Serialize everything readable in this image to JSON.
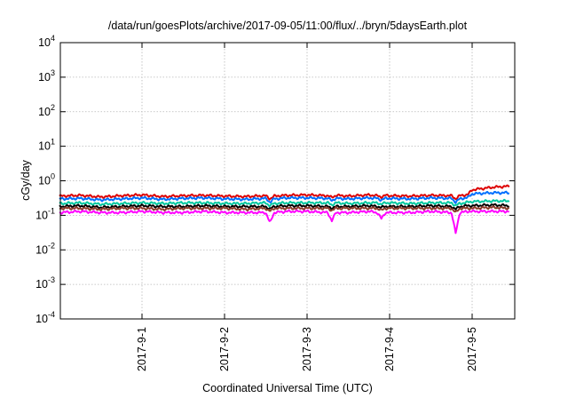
{
  "chart_data": {
    "type": "line",
    "title": "/data/run/goesPlots/archive/2017-09-05/11:00/flux/../bryn/5daysEarth.plot",
    "xlabel": "Coordinated Universal Time (UTC)",
    "ylabel": "cGy/day",
    "yscale": "log",
    "ylim": [
      0.0001,
      10000
    ],
    "xlim": [
      "2017-08-31 00:00",
      "2017-09-05 11:00"
    ],
    "x_ticks": [
      "2017-9-1",
      "2017-9-2",
      "2017-9-3",
      "2017-9-4",
      "2017-9-5"
    ],
    "y_ticks": [
      {
        "base": "10",
        "exp": "4"
      },
      {
        "base": "10",
        "exp": "3"
      },
      {
        "base": "10",
        "exp": "2"
      },
      {
        "base": "10",
        "exp": "1"
      },
      {
        "base": "10",
        "exp": "0"
      },
      {
        "base": "10",
        "exp": "-1"
      },
      {
        "base": "10",
        "exp": "-2"
      },
      {
        "base": "10",
        "exp": "-3"
      },
      {
        "base": "10",
        "exp": "-4"
      }
    ],
    "grid": true,
    "legend": "none",
    "x_day_fraction": [
      0,
      0.25,
      0.5,
      0.75,
      1,
      1.25,
      1.5,
      1.75,
      2,
      2.25,
      2.5,
      2.55,
      2.6,
      2.75,
      3,
      3.25,
      3.3,
      3.35,
      3.5,
      3.75,
      3.85,
      3.9,
      3.95,
      4,
      4.25,
      4.5,
      4.75,
      4.8,
      4.85,
      4.95,
      5.0,
      5.25,
      5.4583
    ],
    "series": [
      {
        "color": "#dd0000",
        "values": [
          0.36,
          0.38,
          0.34,
          0.37,
          0.39,
          0.35,
          0.37,
          0.38,
          0.36,
          0.35,
          0.37,
          0.3,
          0.36,
          0.38,
          0.39,
          0.37,
          0.33,
          0.38,
          0.36,
          0.39,
          0.37,
          0.34,
          0.38,
          0.37,
          0.36,
          0.38,
          0.37,
          0.3,
          0.37,
          0.4,
          0.55,
          0.65,
          0.7
        ]
      },
      {
        "color": "#0070ff",
        "values": [
          0.3,
          0.31,
          0.28,
          0.3,
          0.32,
          0.29,
          0.31,
          0.32,
          0.3,
          0.29,
          0.31,
          0.24,
          0.3,
          0.32,
          0.32,
          0.31,
          0.27,
          0.31,
          0.3,
          0.32,
          0.31,
          0.28,
          0.31,
          0.31,
          0.3,
          0.32,
          0.31,
          0.24,
          0.3,
          0.33,
          0.42,
          0.45,
          0.45
        ]
      },
      {
        "color": "#00c8a0",
        "values": [
          0.22,
          0.23,
          0.21,
          0.22,
          0.23,
          0.22,
          0.23,
          0.23,
          0.22,
          0.22,
          0.23,
          0.19,
          0.22,
          0.23,
          0.23,
          0.23,
          0.2,
          0.23,
          0.22,
          0.23,
          0.23,
          0.21,
          0.23,
          0.23,
          0.22,
          0.23,
          0.23,
          0.19,
          0.22,
          0.24,
          0.25,
          0.26,
          0.26
        ]
      },
      {
        "color": "#000000",
        "values": [
          0.18,
          0.19,
          0.17,
          0.18,
          0.19,
          0.18,
          0.18,
          0.19,
          0.18,
          0.18,
          0.18,
          0.15,
          0.18,
          0.19,
          0.19,
          0.18,
          0.16,
          0.18,
          0.18,
          0.19,
          0.18,
          0.17,
          0.18,
          0.18,
          0.18,
          0.19,
          0.18,
          0.15,
          0.18,
          0.19,
          0.19,
          0.2,
          0.19
        ]
      },
      {
        "color": "#8a3a2a",
        "values": [
          0.16,
          0.16,
          0.15,
          0.16,
          0.16,
          0.15,
          0.16,
          0.16,
          0.16,
          0.15,
          0.16,
          0.13,
          0.16,
          0.16,
          0.16,
          0.16,
          0.14,
          0.16,
          0.16,
          0.16,
          0.16,
          0.14,
          0.16,
          0.16,
          0.16,
          0.16,
          0.16,
          0.12,
          0.16,
          0.16,
          0.16,
          0.17,
          0.16
        ]
      },
      {
        "color": "#ff00ff",
        "values": [
          0.12,
          0.13,
          0.12,
          0.12,
          0.13,
          0.12,
          0.12,
          0.13,
          0.12,
          0.12,
          0.12,
          0.06,
          0.12,
          0.13,
          0.13,
          0.12,
          0.07,
          0.12,
          0.12,
          0.13,
          0.12,
          0.08,
          0.12,
          0.12,
          0.12,
          0.13,
          0.12,
          0.03,
          0.12,
          0.13,
          0.13,
          0.13,
          0.13
        ]
      }
    ]
  }
}
